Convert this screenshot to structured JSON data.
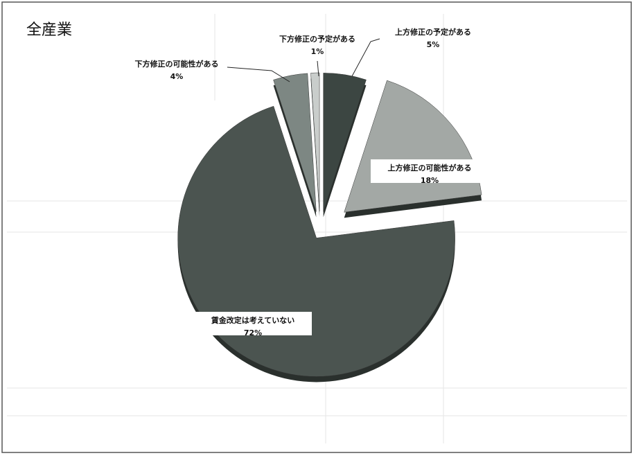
{
  "chart_data": {
    "type": "pie",
    "title": "全産業",
    "categories": [
      "上方修正の予定がある",
      "上方修正の可能性がある",
      "賃金改定は考えていない",
      "下方修正の可能性がある",
      "下方修正の予定がある"
    ],
    "values": [
      5,
      18,
      72,
      4,
      1
    ],
    "value_labels": [
      "5%",
      "18%",
      "72%",
      "4%",
      "1%"
    ],
    "colors": [
      "#3c4642",
      "#a3a8a5",
      "#4b5450",
      "#7d8783",
      "#c9cdcb"
    ]
  }
}
